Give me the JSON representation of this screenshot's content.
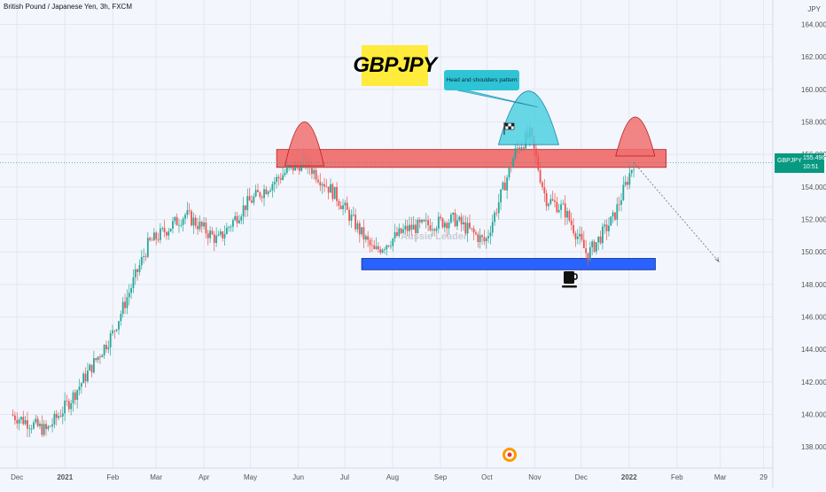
{
  "header": {
    "title": "British Pound / Japanese Yen, 3h, FXCM",
    "currency": "JPY"
  },
  "annotations": {
    "symbol_box": "GBPJPY",
    "callout": "Head and shoulders pattern",
    "watermark": "Aussie Leader"
  },
  "price_tag": {
    "symbol": "GBPJPY",
    "price": "155.496",
    "countdown": "10:51"
  },
  "colors": {
    "up_candle": "#26a69a",
    "down_candle": "#ef5350",
    "resistance": "#f07070",
    "support": "#2962ff",
    "head": "#4dd0e1",
    "price_tag": "#089981",
    "symbol_box": "#ffeb3b"
  },
  "icons": [
    "coffee-cup-icon",
    "checkered-flag-icon",
    "bell-icon"
  ],
  "chart_data": {
    "type": "candlestick",
    "title": "British Pound / Japanese Yen, 3h, FXCM",
    "y_ticks": [
      164,
      162,
      160,
      158,
      156,
      154,
      152,
      150,
      148,
      146,
      144,
      142,
      140,
      138
    ],
    "y_tick_labels": [
      "164.000",
      "162.000",
      "160.000",
      "158.000",
      "156.000",
      "154.000",
      "152.000",
      "150.000",
      "148.000",
      "146.000",
      "144.000",
      "142.000",
      "140.000",
      "138.000"
    ],
    "ylim": [
      136.7,
      165.5
    ],
    "x_ticks": [
      "Dec",
      "2021",
      "Feb",
      "Mar",
      "Apr",
      "May",
      "Jun",
      "Jul",
      "Aug",
      "Sep",
      "Oct",
      "Nov",
      "Dec",
      "2022",
      "Feb",
      "Mar",
      "29"
    ],
    "grid": true,
    "price_path": [
      [
        "2020-11-27",
        140.0
      ],
      [
        "2020-12-20",
        139.0
      ],
      [
        "2021-01-04",
        140.8
      ],
      [
        "2021-02-01",
        145.0
      ],
      [
        "2021-02-24",
        150.5
      ],
      [
        "2021-03-20",
        152.3
      ],
      [
        "2021-04-10",
        150.7
      ],
      [
        "2021-04-28",
        152.9
      ],
      [
        "2021-05-25",
        155.0
      ],
      [
        "2021-06-05",
        155.6
      ],
      [
        "2021-06-25",
        153.5
      ],
      [
        "2021-07-20",
        150.0
      ],
      [
        "2021-08-10",
        151.4
      ],
      [
        "2021-09-10",
        152.0
      ],
      [
        "2021-09-30",
        150.6
      ],
      [
        "2021-10-20",
        156.3
      ],
      [
        "2021-10-29",
        157.2
      ],
      [
        "2021-11-08",
        153.3
      ],
      [
        "2021-11-20",
        152.6
      ],
      [
        "2021-12-05",
        149.8
      ],
      [
        "2021-12-22",
        152.1
      ],
      [
        "2022-01-04",
        155.5
      ]
    ],
    "last_price": 155.496,
    "resistance_zone": {
      "from": "2021-05-18",
      "to": "2022-01-25",
      "low": 155.2,
      "high": 156.3
    },
    "support_zone": {
      "from": "2021-07-12",
      "to": "2022-01-18",
      "low": 148.9,
      "high": 149.6
    },
    "shoulders_heads": [
      {
        "role": "left-shoulder",
        "center": "2021-06-05",
        "top": 158.0,
        "base": 155.3
      },
      {
        "role": "head",
        "center": "2021-10-28",
        "top": 159.9,
        "base": 156.6
      },
      {
        "role": "right-shoulder",
        "center": "2022-01-05",
        "top": 158.3,
        "base": 155.9
      }
    ],
    "projection": {
      "from": [
        "2022-01-04",
        155.5
      ],
      "to": [
        "2022-02-28",
        149.4
      ]
    }
  }
}
